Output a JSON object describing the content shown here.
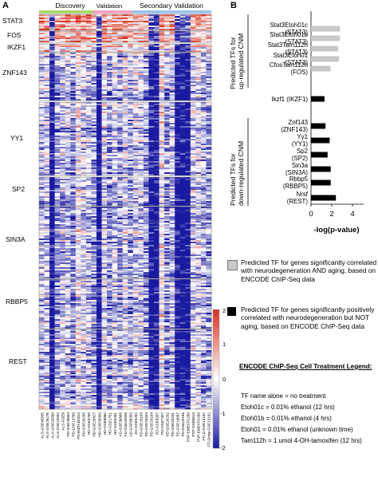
{
  "panel_a": {
    "letter": "A",
    "groups": [
      {
        "label": "Discovery",
        "color": "#a8d86e"
      },
      {
        "label": "Validation",
        "color": "#f2a2c0"
      },
      {
        "label": "Secondary Validation",
        "color": "#9cc4ea"
      }
    ],
    "row_labels": [
      "STAT3",
      "FOS",
      "IKZF1",
      "ZNF143",
      "YY1",
      "SP2",
      "SIN3A",
      "RBBP5",
      "REST"
    ],
    "colorbar": {
      "ticks": [
        "2",
        "1",
        "0",
        "-1",
        "-2"
      ],
      "colors": {
        "high": "#d7301f",
        "mid": "#ffffff",
        "low": "#1a1aa0"
      }
    },
    "sample_labels": [
      "ALS-GSE40505",
      "ALS-GSE26276",
      "ALS-GSE20589",
      "ALS-GSE19332",
      "ALS-GSE8",
      "PD-GSE28894",
      "PD-GSE13780",
      "PD-EMTAB1814",
      "PD-GSE20295",
      "HD-GSE3790",
      "HD-GSE26927",
      "HD-GSE33000",
      "HD-GSE8880",
      "HD-GSE1751",
      "HD-GSE5281",
      "AD-GSE36980",
      "AD-GSE33000",
      "AD-GSE48350",
      "AD-GSE5281",
      "PD-GSE20163",
      "PD-GSE20333",
      "PD-GSE20164",
      "PD-GSE8397",
      "PD-GSE7307",
      "PD-GSE20292",
      "PD-GSE20291",
      "PD-GSE19587",
      "PD-GSE20186",
      "PSP-EMEXP2280",
      "PSP-GSE6613",
      "PSP-EMEXP2280",
      "FTLD-GSE13162",
      "FTLDnop-GSE13162"
    ]
  },
  "panel_b": {
    "letter": "B",
    "group_up_label": "Predicted TFs for up-regulated CNM",
    "group_down_label": "Predicted TFs for down-regulated CNM",
    "bars": [
      {
        "label": "Stat3Etoh01c (STAT3)",
        "value": 2.8,
        "type": "gray"
      },
      {
        "label": "Stat3Etoh01b (STAT3)",
        "value": 2.8,
        "type": "gray"
      },
      {
        "label": "Stat3Tam112h (STAT3)",
        "value": 2.6,
        "type": "gray"
      },
      {
        "label": "Stat3Etoh01 (STAT3)",
        "value": 2.7,
        "type": "gray"
      },
      {
        "label": "CfosTam112h (FOS)",
        "value": 1.9,
        "type": "gray"
      },
      {
        "label": "Ikzf1 (IKZF1)",
        "value": 1.3,
        "type": "black"
      },
      {
        "label": "Znf143 (ZNF143)",
        "value": 1.4,
        "type": "black"
      },
      {
        "label": "Yy1 (YY1)",
        "value": 1.8,
        "type": "black"
      },
      {
        "label": "Sp2 (SP2)",
        "value": 1.6,
        "type": "black"
      },
      {
        "label": "Sin3a (SIN3A)",
        "value": 1.9,
        "type": "black"
      },
      {
        "label": "Rbbp5 (RBBP5)",
        "value": 1.9,
        "type": "black"
      },
      {
        "label": "Nrsf (REST)",
        "value": 2.4,
        "type": "black"
      }
    ],
    "xaxis": {
      "ticks": [
        "0",
        "2",
        "4"
      ],
      "label": "-log(p-value)"
    },
    "legend": {
      "gray_text": "Predicted TF for genes significantly correlated with neurodegeneration AND aging, based on ENCODE ChIP-Seq data",
      "black_text": "Predicted TF for genes significantly positively correlated with neurodegeneration but NOT aging, based on ENCODE ChIP-Seq data"
    },
    "encode": {
      "title": "ENCODE ChIP-Seq Cell Treatment Legend:",
      "lines": [
        "TF name alone = no treatment",
        "Etoh01c = 0.01% ethanol (12 hrs)",
        "Etoh01b = 0.01% ethanol (4 hrs)",
        "Etoh01 = 0.01% ethanol (unknown time)",
        "Tam112h = 1 umol 4-OH-tamoxifen (12 hrs)"
      ]
    },
    "colors": {
      "gray": "#c8c8c8",
      "black": "#000000"
    }
  }
}
